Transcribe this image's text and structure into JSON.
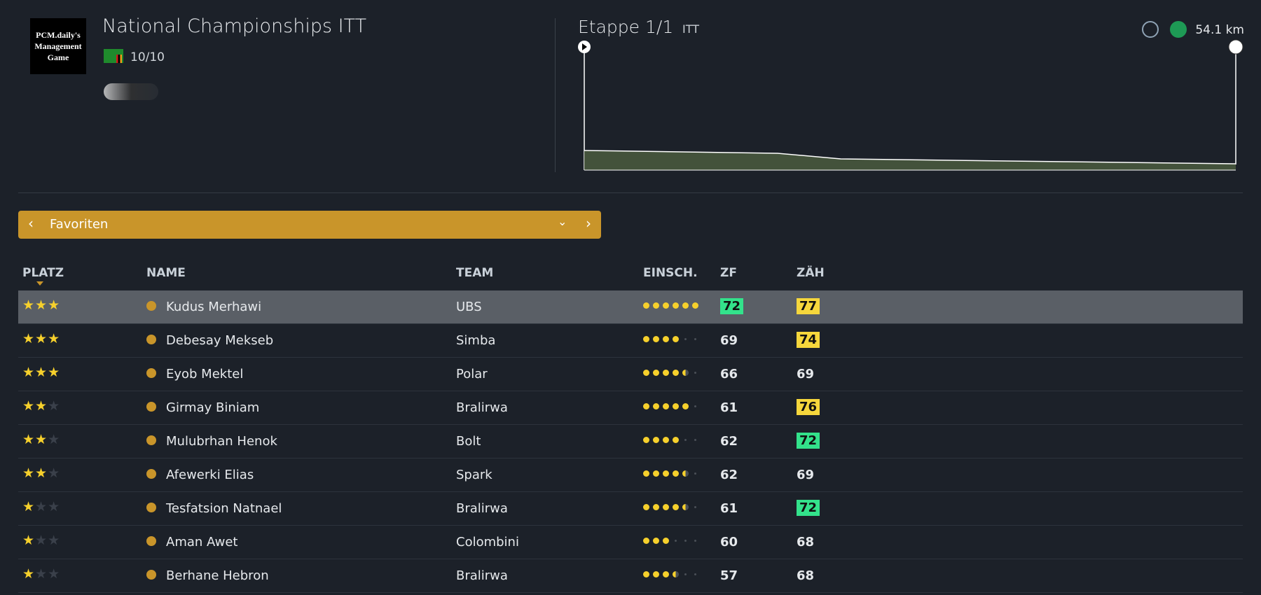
{
  "header": {
    "logo": "PCM.daily's Management Game",
    "title": "National Championships ITT",
    "progress": "10/10"
  },
  "stage": {
    "title": "Etappe 1/1",
    "type": "ITT",
    "distance": "54.1 km"
  },
  "selector": {
    "label": "Favoriten"
  },
  "table": {
    "columns": [
      "PLATZ",
      "NAME",
      "TEAM",
      "EINSCH.",
      "ZF",
      "ZÄH"
    ],
    "selected_row": 0,
    "rows": [
      {
        "stars": 3,
        "name": "Kudus Merhawi",
        "team": "UBS",
        "rating": 6,
        "zf": 72,
        "zf_badge": "#33e28b",
        "zah": 77,
        "zah_badge": "#f6d73c"
      },
      {
        "stars": 3,
        "name": "Debesay Mekseb",
        "team": "Simba",
        "rating": 4,
        "zf": 69,
        "zah": 74,
        "zah_badge": "#f6d73c"
      },
      {
        "stars": 3,
        "name": "Eyob Mektel",
        "team": "Polar",
        "rating": 4.5,
        "zf": 66,
        "zah": 69
      },
      {
        "stars": 2,
        "name": "Girmay Biniam",
        "team": "Bralirwa",
        "rating": 5,
        "zf": 61,
        "zah": 76,
        "zah_badge": "#f6d73c"
      },
      {
        "stars": 2,
        "name": "Mulubrhan Henok",
        "team": "Bolt",
        "rating": 4,
        "zf": 62,
        "zah": 72,
        "zah_badge": "#33e28b"
      },
      {
        "stars": 2,
        "name": "Afewerki Elias",
        "team": "Spark",
        "rating": 4.5,
        "zf": 62,
        "zah": 69
      },
      {
        "stars": 1,
        "name": "Tesfatsion Natnael",
        "team": "Bralirwa",
        "rating": 4.5,
        "zf": 61,
        "zah": 72,
        "zah_badge": "#33e28b"
      },
      {
        "stars": 1,
        "name": "Aman Awet",
        "team": "Colombini",
        "rating": 3,
        "zf": 60,
        "zah": 68
      },
      {
        "stars": 1,
        "name": "Berhane Hebron",
        "team": "Bralirwa",
        "rating": 3.5,
        "zf": 57,
        "zah": 68
      }
    ]
  }
}
